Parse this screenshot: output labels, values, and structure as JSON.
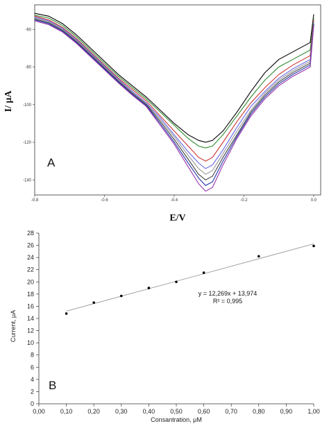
{
  "chart_data": [
    {
      "type": "line",
      "panel_label": "A",
      "xlabel": "E/V",
      "ylabel": "I/ μA",
      "xlim": [
        -0.8,
        0.02
      ],
      "ylim": [
        -148,
        -47
      ],
      "x_ticks": [
        "-0.8",
        "-0.6",
        "-0.4",
        "-0.2",
        "0.0"
      ],
      "x_tick_values": [
        -0.8,
        -0.6,
        -0.4,
        -0.2,
        0.0
      ],
      "y_ticks": [
        "-60",
        "-80",
        "-100",
        "-120",
        "-140"
      ],
      "y_tick_values": [
        -60,
        -80,
        -100,
        -120,
        -140
      ],
      "grid": false,
      "series": [
        {
          "color": "#000000",
          "values": [
            [
              -0.8,
              -51.5
            ],
            [
              -0.76,
              -53
            ],
            [
              -0.72,
              -57
            ],
            [
              -0.68,
              -63
            ],
            [
              -0.64,
              -70
            ],
            [
              -0.6,
              -77
            ],
            [
              -0.56,
              -84
            ],
            [
              -0.52,
              -90
            ],
            [
              -0.48,
              -96
            ],
            [
              -0.44,
              -103
            ],
            [
              -0.4,
              -110
            ],
            [
              -0.36,
              -116
            ],
            [
              -0.33,
              -119
            ],
            [
              -0.31,
              -120
            ],
            [
              -0.29,
              -119
            ],
            [
              -0.26,
              -114
            ],
            [
              -0.22,
              -104
            ],
            [
              -0.18,
              -93
            ],
            [
              -0.14,
              -83
            ],
            [
              -0.1,
              -76
            ],
            [
              -0.06,
              -72
            ],
            [
              -0.03,
              -69
            ],
            [
              -0.01,
              -67
            ],
            [
              0.0,
              -52
            ]
          ]
        },
        {
          "color": "#2e8b2e",
          "values": [
            [
              -0.8,
              -52.5
            ],
            [
              -0.76,
              -54
            ],
            [
              -0.72,
              -58
            ],
            [
              -0.68,
              -64
            ],
            [
              -0.64,
              -71
            ],
            [
              -0.6,
              -78
            ],
            [
              -0.56,
              -85
            ],
            [
              -0.52,
              -91
            ],
            [
              -0.48,
              -97
            ],
            [
              -0.44,
              -104
            ],
            [
              -0.4,
              -111
            ],
            [
              -0.36,
              -118
            ],
            [
              -0.33,
              -122
            ],
            [
              -0.31,
              -123
            ],
            [
              -0.29,
              -122
            ],
            [
              -0.26,
              -116
            ],
            [
              -0.22,
              -106
            ],
            [
              -0.18,
              -96
            ],
            [
              -0.14,
              -87
            ],
            [
              -0.1,
              -80
            ],
            [
              -0.06,
              -76
            ],
            [
              -0.03,
              -73
            ],
            [
              -0.01,
              -71
            ],
            [
              0.0,
              -54
            ]
          ]
        },
        {
          "color": "#cc3333",
          "values": [
            [
              -0.8,
              -53
            ],
            [
              -0.76,
              -55
            ],
            [
              -0.72,
              -59
            ],
            [
              -0.68,
              -65
            ],
            [
              -0.64,
              -72
            ],
            [
              -0.6,
              -79
            ],
            [
              -0.56,
              -86
            ],
            [
              -0.52,
              -92
            ],
            [
              -0.48,
              -98
            ],
            [
              -0.44,
              -106
            ],
            [
              -0.4,
              -114
            ],
            [
              -0.36,
              -122
            ],
            [
              -0.33,
              -128
            ],
            [
              -0.31,
              -130
            ],
            [
              -0.29,
              -128
            ],
            [
              -0.26,
              -120
            ],
            [
              -0.22,
              -109
            ],
            [
              -0.18,
              -99
            ],
            [
              -0.14,
              -91
            ],
            [
              -0.1,
              -84
            ],
            [
              -0.06,
              -79
            ],
            [
              -0.03,
              -76
            ],
            [
              -0.01,
              -74
            ],
            [
              0.0,
              -55
            ]
          ]
        },
        {
          "color": "#6666ee",
          "values": [
            [
              -0.8,
              -53.5
            ],
            [
              -0.76,
              -55.5
            ],
            [
              -0.72,
              -59.5
            ],
            [
              -0.68,
              -65.5
            ],
            [
              -0.64,
              -72.5
            ],
            [
              -0.6,
              -79.5
            ],
            [
              -0.56,
              -86.5
            ],
            [
              -0.52,
              -93
            ],
            [
              -0.48,
              -99
            ],
            [
              -0.44,
              -107
            ],
            [
              -0.4,
              -116
            ],
            [
              -0.36,
              -125
            ],
            [
              -0.33,
              -131
            ],
            [
              -0.31,
              -134
            ],
            [
              -0.29,
              -132
            ],
            [
              -0.26,
              -124
            ],
            [
              -0.22,
              -112
            ],
            [
              -0.18,
              -101
            ],
            [
              -0.14,
              -93
            ],
            [
              -0.1,
              -86
            ],
            [
              -0.06,
              -81
            ],
            [
              -0.03,
              -78
            ],
            [
              -0.01,
              -76
            ],
            [
              0.0,
              -56
            ]
          ]
        },
        {
          "color": "#999999",
          "values": [
            [
              -0.8,
              -54
            ],
            [
              -0.76,
              -56
            ],
            [
              -0.72,
              -60
            ],
            [
              -0.68,
              -66
            ],
            [
              -0.64,
              -73
            ],
            [
              -0.6,
              -80
            ],
            [
              -0.56,
              -87
            ],
            [
              -0.52,
              -93.5
            ],
            [
              -0.48,
              -99.5
            ],
            [
              -0.44,
              -108
            ],
            [
              -0.4,
              -117
            ],
            [
              -0.36,
              -127
            ],
            [
              -0.33,
              -134
            ],
            [
              -0.31,
              -137
            ],
            [
              -0.29,
              -135
            ],
            [
              -0.26,
              -126
            ],
            [
              -0.22,
              -114
            ],
            [
              -0.18,
              -103
            ],
            [
              -0.14,
              -94
            ],
            [
              -0.1,
              -87
            ],
            [
              -0.06,
              -82
            ],
            [
              -0.03,
              -79
            ],
            [
              -0.01,
              -77
            ],
            [
              0.0,
              -56.5
            ]
          ]
        },
        {
          "color": "#444444",
          "values": [
            [
              -0.8,
              -54.5
            ],
            [
              -0.76,
              -56.5
            ],
            [
              -0.72,
              -60.5
            ],
            [
              -0.68,
              -66.5
            ],
            [
              -0.64,
              -73.5
            ],
            [
              -0.6,
              -80.5
            ],
            [
              -0.56,
              -87.5
            ],
            [
              -0.52,
              -94
            ],
            [
              -0.48,
              -100
            ],
            [
              -0.44,
              -109
            ],
            [
              -0.4,
              -118.5
            ],
            [
              -0.36,
              -129
            ],
            [
              -0.33,
              -137
            ],
            [
              -0.31,
              -140
            ],
            [
              -0.29,
              -138
            ],
            [
              -0.26,
              -128
            ],
            [
              -0.22,
              -116
            ],
            [
              -0.18,
              -104
            ],
            [
              -0.14,
              -95
            ],
            [
              -0.1,
              -88
            ],
            [
              -0.06,
              -83
            ],
            [
              -0.03,
              -80
            ],
            [
              -0.01,
              -78
            ],
            [
              0.0,
              -57
            ]
          ]
        },
        {
          "color": "#2233aa",
          "values": [
            [
              -0.8,
              -55
            ],
            [
              -0.76,
              -57
            ],
            [
              -0.72,
              -61
            ],
            [
              -0.68,
              -67
            ],
            [
              -0.64,
              -74
            ],
            [
              -0.6,
              -81
            ],
            [
              -0.56,
              -88
            ],
            [
              -0.52,
              -94.5
            ],
            [
              -0.48,
              -100.5
            ],
            [
              -0.44,
              -110
            ],
            [
              -0.4,
              -120
            ],
            [
              -0.36,
              -131
            ],
            [
              -0.33,
              -139
            ],
            [
              -0.31,
              -143
            ],
            [
              -0.29,
              -141
            ],
            [
              -0.26,
              -130
            ],
            [
              -0.22,
              -117
            ],
            [
              -0.18,
              -105
            ],
            [
              -0.14,
              -96
            ],
            [
              -0.1,
              -89
            ],
            [
              -0.06,
              -84
            ],
            [
              -0.03,
              -81
            ],
            [
              -0.01,
              -79
            ],
            [
              0.0,
              -57.5
            ]
          ]
        },
        {
          "color": "#9933aa",
          "values": [
            [
              -0.8,
              -55.5
            ],
            [
              -0.76,
              -57.5
            ],
            [
              -0.72,
              -61.5
            ],
            [
              -0.68,
              -67.5
            ],
            [
              -0.64,
              -74.5
            ],
            [
              -0.6,
              -81.5
            ],
            [
              -0.56,
              -88.5
            ],
            [
              -0.52,
              -95
            ],
            [
              -0.48,
              -101
            ],
            [
              -0.44,
              -111
            ],
            [
              -0.4,
              -121
            ],
            [
              -0.36,
              -133
            ],
            [
              -0.33,
              -142
            ],
            [
              -0.31,
              -146
            ],
            [
              -0.29,
              -144
            ],
            [
              -0.26,
              -132
            ],
            [
              -0.22,
              -118
            ],
            [
              -0.18,
              -106
            ],
            [
              -0.14,
              -97
            ],
            [
              -0.1,
              -90
            ],
            [
              -0.06,
              -85
            ],
            [
              -0.03,
              -82
            ],
            [
              -0.01,
              -80
            ],
            [
              0.0,
              -58
            ]
          ]
        }
      ]
    },
    {
      "type": "scatter",
      "panel_label": "B",
      "xlabel": "Consantration, μM",
      "ylabel": "Current, μA",
      "xlim": [
        0,
        1
      ],
      "ylim": [
        0,
        28
      ],
      "x_ticks": [
        "0,00",
        "0,10",
        "0,20",
        "0,30",
        "0,40",
        "0,50",
        "0,60",
        "0,70",
        "0,80",
        "0,90",
        "1,00"
      ],
      "x_tick_values": [
        0,
        0.1,
        0.2,
        0.3,
        0.4,
        0.5,
        0.6,
        0.7,
        0.8,
        0.9,
        1.0
      ],
      "y_ticks": [
        "0",
        "2",
        "4",
        "6",
        "8",
        "10",
        "12",
        "14",
        "16",
        "18",
        "20",
        "22",
        "24",
        "26",
        "28"
      ],
      "y_tick_values": [
        0,
        2,
        4,
        6,
        8,
        10,
        12,
        14,
        16,
        18,
        20,
        22,
        24,
        26,
        28
      ],
      "grid": false,
      "points": [
        {
          "x": 0.1,
          "y": 14.8
        },
        {
          "x": 0.2,
          "y": 16.6
        },
        {
          "x": 0.3,
          "y": 17.7
        },
        {
          "x": 0.4,
          "y": 19.0
        },
        {
          "x": 0.5,
          "y": 20.0
        },
        {
          "x": 0.6,
          "y": 21.5
        },
        {
          "x": 0.8,
          "y": 24.2
        },
        {
          "x": 1.0,
          "y": 25.9
        }
      ],
      "point_color": "#000000",
      "trendline": {
        "slope": 12.269,
        "intercept": 13.974,
        "x_range": [
          0.1,
          1.0
        ],
        "color": "#999999"
      },
      "equation_text": "y = 12,269x + 13,974",
      "r2_text": "R² = 0,995"
    }
  ]
}
